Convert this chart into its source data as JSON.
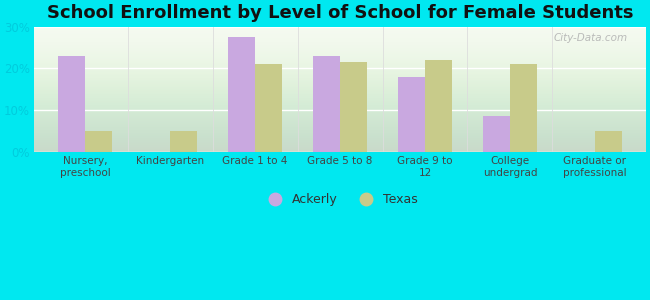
{
  "title": "School Enrollment by Level of School for Female Students",
  "categories": [
    "Nursery,\npreschool",
    "Kindergarten",
    "Grade 1 to 4",
    "Grade 5 to 8",
    "Grade 9 to\n12",
    "College\nundergrad",
    "Graduate or\nprofessional"
  ],
  "ackerly": [
    23.0,
    0.0,
    27.5,
    23.0,
    18.0,
    8.5,
    0.0
  ],
  "texas": [
    5.0,
    5.0,
    21.0,
    21.5,
    22.0,
    21.0,
    5.0
  ],
  "ackerly_color": "#c9a8e0",
  "texas_color": "#c8cb8a",
  "background_outer": "#00e8f0",
  "background_inner_top": "#ffffff",
  "background_inner_bottom": "#d4edda",
  "ylim": [
    0,
    30
  ],
  "yticks": [
    0,
    10,
    20,
    30
  ],
  "ytick_labels": [
    "0%",
    "10%",
    "20%",
    "30%"
  ],
  "legend_labels": [
    "Ackerly",
    "Texas"
  ],
  "title_fontsize": 13,
  "watermark": "City-Data.com"
}
